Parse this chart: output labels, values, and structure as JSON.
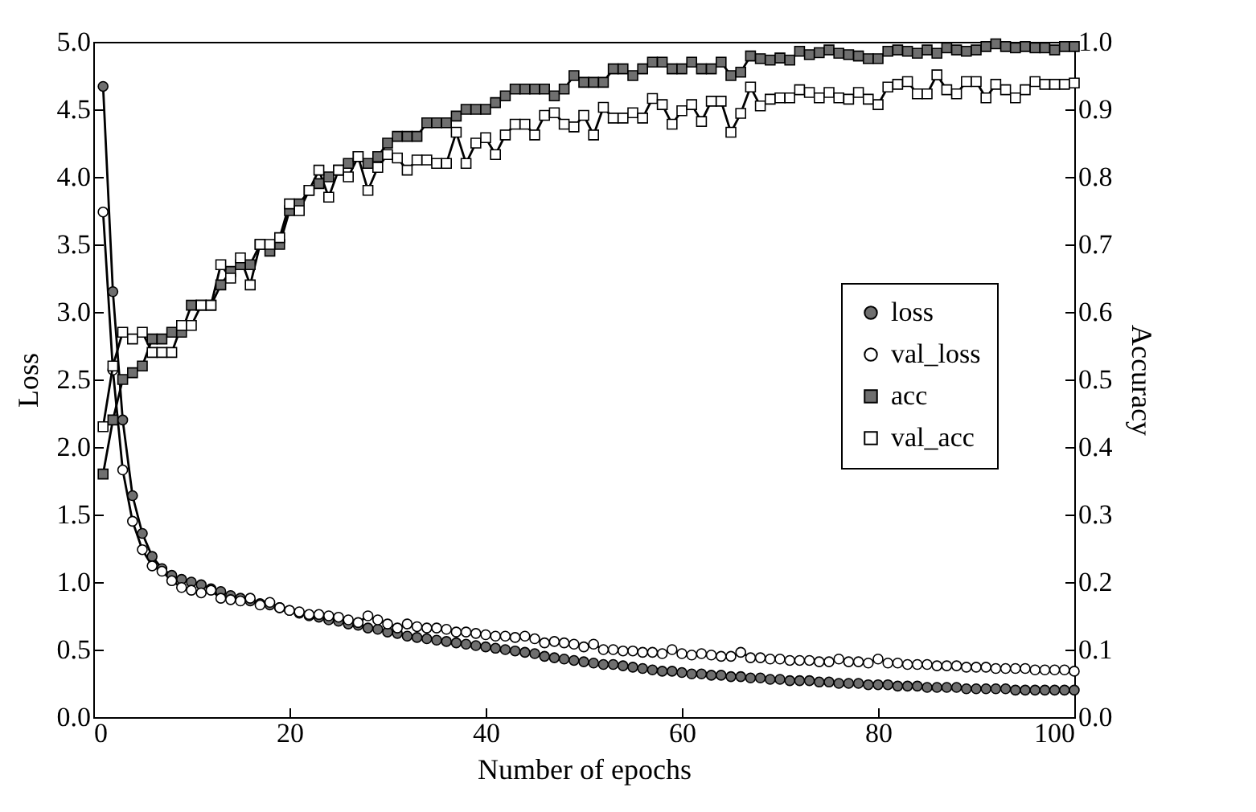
{
  "chart_data": {
    "type": "line",
    "xlabel": "Number of epochs",
    "ylabel": "Loss",
    "y2label": "Accuracy",
    "legend": "right",
    "xlim": [
      0,
      100
    ],
    "xticks": [
      0,
      20,
      40,
      60,
      80,
      100
    ],
    "ylim": [
      0,
      5
    ],
    "yticks": [
      {
        "value": 0,
        "label": "0.0"
      },
      {
        "value": 0.5,
        "label": "0.5"
      },
      {
        "value": 1,
        "label": "1.0"
      },
      {
        "value": 1.5,
        "label": "1.5"
      },
      {
        "value": 2,
        "label": "2.0"
      },
      {
        "value": 2.5,
        "label": "2.5"
      },
      {
        "value": 3,
        "label": "3.0"
      },
      {
        "value": 3.5,
        "label": "3.5"
      },
      {
        "value": 4,
        "label": "4.0"
      },
      {
        "value": 4.5,
        "label": "4.5"
      },
      {
        "value": 5,
        "label": "5.0"
      }
    ],
    "y2lim": [
      0,
      1
    ],
    "y2ticks": [
      {
        "value": 0,
        "label": "0.0"
      },
      0.1,
      0.2,
      0.3,
      0.4,
      0.5,
      0.6,
      0.7,
      0.8,
      0.9,
      {
        "value": 1,
        "label": "1.0"
      }
    ],
    "x": [
      1,
      2,
      3,
      4,
      5,
      6,
      7,
      8,
      9,
      10,
      11,
      12,
      13,
      14,
      15,
      16,
      17,
      18,
      19,
      20,
      21,
      22,
      23,
      24,
      25,
      26,
      27,
      28,
      29,
      30,
      31,
      32,
      33,
      34,
      35,
      36,
      37,
      38,
      39,
      40,
      41,
      42,
      43,
      44,
      45,
      46,
      47,
      48,
      49,
      50,
      51,
      52,
      53,
      54,
      55,
      56,
      57,
      58,
      59,
      60,
      61,
      62,
      63,
      64,
      65,
      66,
      67,
      68,
      69,
      70,
      71,
      72,
      73,
      74,
      75,
      76,
      77,
      78,
      79,
      80,
      81,
      82,
      83,
      84,
      85,
      86,
      87,
      88,
      89,
      90,
      91,
      92,
      93,
      94,
      95,
      96,
      97,
      98,
      99,
      100
    ],
    "series": [
      {
        "name": "loss",
        "color": "#6f6f6f",
        "marker": "circle",
        "values": [
          4.67,
          3.15,
          2.2,
          1.64,
          1.36,
          1.19,
          1.1,
          1.05,
          1.02,
          1.0,
          0.98,
          0.95,
          0.93,
          0.9,
          0.88,
          0.86,
          0.84,
          0.83,
          0.81,
          0.79,
          0.77,
          0.75,
          0.74,
          0.72,
          0.71,
          0.69,
          0.68,
          0.66,
          0.65,
          0.63,
          0.62,
          0.6,
          0.59,
          0.58,
          0.57,
          0.56,
          0.55,
          0.54,
          0.53,
          0.52,
          0.51,
          0.5,
          0.49,
          0.48,
          0.47,
          0.45,
          0.44,
          0.43,
          0.42,
          0.41,
          0.4,
          0.39,
          0.39,
          0.38,
          0.37,
          0.36,
          0.35,
          0.34,
          0.34,
          0.33,
          0.32,
          0.32,
          0.31,
          0.31,
          0.3,
          0.3,
          0.29,
          0.29,
          0.28,
          0.28,
          0.27,
          0.27,
          0.27,
          0.26,
          0.26,
          0.25,
          0.25,
          0.25,
          0.24,
          0.24,
          0.24,
          0.23,
          0.23,
          0.23,
          0.22,
          0.22,
          0.22,
          0.22,
          0.21,
          0.21,
          0.21,
          0.21,
          0.21,
          0.2,
          0.2,
          0.2,
          0.2,
          0.2,
          0.2,
          0.2
        ]
      },
      {
        "name": "val_loss",
        "color": "#ffffff",
        "marker": "circle",
        "values": [
          3.74,
          2.57,
          1.83,
          1.45,
          1.24,
          1.12,
          1.08,
          1.01,
          0.96,
          0.94,
          0.92,
          0.94,
          0.88,
          0.87,
          0.86,
          0.88,
          0.83,
          0.85,
          0.81,
          0.79,
          0.78,
          0.76,
          0.76,
          0.75,
          0.74,
          0.72,
          0.7,
          0.75,
          0.72,
          0.69,
          0.66,
          0.69,
          0.67,
          0.66,
          0.66,
          0.65,
          0.63,
          0.63,
          0.62,
          0.61,
          0.6,
          0.6,
          0.59,
          0.6,
          0.58,
          0.55,
          0.56,
          0.55,
          0.54,
          0.52,
          0.54,
          0.5,
          0.5,
          0.49,
          0.49,
          0.48,
          0.48,
          0.47,
          0.5,
          0.47,
          0.46,
          0.47,
          0.46,
          0.45,
          0.45,
          0.48,
          0.44,
          0.44,
          0.43,
          0.43,
          0.42,
          0.42,
          0.42,
          0.41,
          0.41,
          0.43,
          0.41,
          0.41,
          0.4,
          0.43,
          0.4,
          0.4,
          0.39,
          0.39,
          0.39,
          0.38,
          0.38,
          0.38,
          0.37,
          0.37,
          0.37,
          0.36,
          0.36,
          0.36,
          0.36,
          0.35,
          0.35,
          0.35,
          0.35,
          0.34
        ]
      },
      {
        "name": "acc",
        "color": "#6f6f6f",
        "marker": "square",
        "axis": "y2",
        "values": [
          0.36,
          0.44,
          0.5,
          0.51,
          0.52,
          0.56,
          0.56,
          0.57,
          0.57,
          0.61,
          0.61,
          0.61,
          0.64,
          0.66,
          0.67,
          0.67,
          0.7,
          0.69,
          0.7,
          0.75,
          0.76,
          0.78,
          0.79,
          0.8,
          0.81,
          0.82,
          0.83,
          0.82,
          0.83,
          0.85,
          0.86,
          0.86,
          0.86,
          0.88,
          0.88,
          0.88,
          0.89,
          0.9,
          0.9,
          0.9,
          0.91,
          0.92,
          0.93,
          0.93,
          0.93,
          0.93,
          0.92,
          0.93,
          0.95,
          0.94,
          0.94,
          0.94,
          0.96,
          0.96,
          0.95,
          0.96,
          0.97,
          0.97,
          0.96,
          0.96,
          0.97,
          0.96,
          0.96,
          0.97,
          0.95,
          0.955,
          0.979,
          0.975,
          0.973,
          0.976,
          0.973,
          0.986,
          0.981,
          0.984,
          0.988,
          0.983,
          0.981,
          0.979,
          0.975,
          0.975,
          0.986,
          0.988,
          0.986,
          0.983,
          0.988,
          0.983,
          0.991,
          0.988,
          0.986,
          0.988,
          0.993,
          0.997,
          0.993,
          0.991,
          0.993,
          0.991,
          0.991,
          0.988,
          0.993,
          0.993
        ]
      },
      {
        "name": "val_acc",
        "color": "#ffffff",
        "marker": "square",
        "axis": "y2",
        "values": [
          0.43,
          0.52,
          0.57,
          0.56,
          0.57,
          0.54,
          0.54,
          0.54,
          0.58,
          0.58,
          0.61,
          0.61,
          0.67,
          0.65,
          0.68,
          0.64,
          0.7,
          0.7,
          0.71,
          0.76,
          0.75,
          0.78,
          0.81,
          0.77,
          0.81,
          0.8,
          0.83,
          0.78,
          0.814,
          0.833,
          0.828,
          0.81,
          0.825,
          0.825,
          0.82,
          0.82,
          0.866,
          0.82,
          0.85,
          0.858,
          0.833,
          0.862,
          0.878,
          0.878,
          0.862,
          0.891,
          0.895,
          0.878,
          0.874,
          0.891,
          0.862,
          0.903,
          0.887,
          0.887,
          0.895,
          0.887,
          0.916,
          0.907,
          0.878,
          0.898,
          0.907,
          0.882,
          0.912,
          0.912,
          0.866,
          0.894,
          0.933,
          0.905,
          0.915,
          0.917,
          0.917,
          0.929,
          0.925,
          0.917,
          0.925,
          0.917,
          0.915,
          0.925,
          0.915,
          0.907,
          0.933,
          0.937,
          0.941,
          0.923,
          0.923,
          0.951,
          0.929,
          0.923,
          0.941,
          0.941,
          0.917,
          0.937,
          0.929,
          0.917,
          0.929,
          0.941,
          0.937,
          0.937,
          0.937,
          0.939
        ]
      }
    ]
  }
}
